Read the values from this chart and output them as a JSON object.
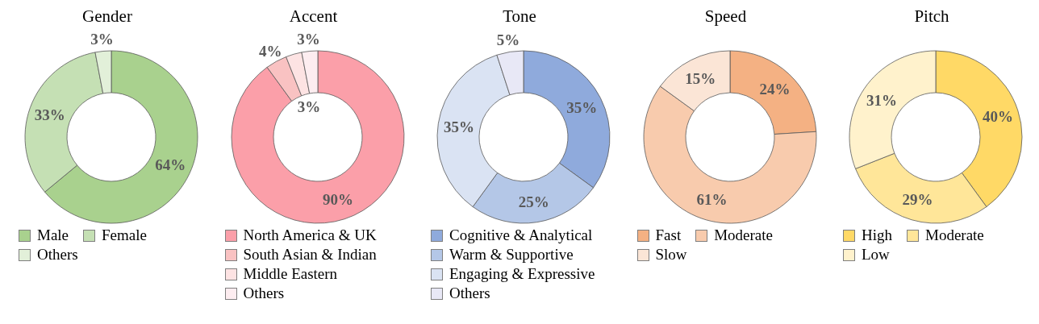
{
  "chart_data": [
    {
      "type": "donut",
      "title": "Gender",
      "categories": [
        "Male",
        "Female",
        "Others"
      ],
      "values": [
        64,
        33,
        3
      ],
      "value_labels": [
        "64%",
        "33%",
        "3%"
      ],
      "colors": [
        "#a9d18e",
        "#c5e0b4",
        "#e2f0d9"
      ],
      "legend": "bottom"
    },
    {
      "type": "donut",
      "title": "Accent",
      "categories": [
        "North America & UK",
        "South Asian & Indian",
        "Middle Eastern",
        "Others"
      ],
      "values": [
        90,
        4,
        3,
        3
      ],
      "value_labels": [
        "90%",
        "4%",
        "3%",
        "3%"
      ],
      "colors": [
        "#fb9fa9",
        "#f9c2c2",
        "#fde3e3",
        "#fdedf0"
      ],
      "legend": "bottom"
    },
    {
      "type": "donut",
      "title": "Tone",
      "categories": [
        "Cognitive & Analytical",
        "Warm & Supportive",
        "Engaging & Expressive",
        "Others"
      ],
      "values": [
        35,
        25,
        35,
        5
      ],
      "value_labels": [
        "35%",
        "25%",
        "35%",
        "5%"
      ],
      "colors": [
        "#8faadc",
        "#b4c7e7",
        "#dae3f3",
        "#e8e8f6"
      ],
      "legend": "bottom"
    },
    {
      "type": "donut",
      "title": "Speed",
      "categories": [
        "Fast",
        "Moderate",
        "Slow"
      ],
      "values": [
        24,
        61,
        15
      ],
      "value_labels": [
        "24%",
        "61%",
        "15%"
      ],
      "colors": [
        "#f4b183",
        "#f8cbad",
        "#fbe5d6"
      ],
      "legend": "bottom"
    },
    {
      "type": "donut",
      "title": "Pitch",
      "categories": [
        "High",
        "Moderate",
        "Low"
      ],
      "values": [
        40,
        29,
        31
      ],
      "value_labels": [
        "40%",
        "29%",
        "31%"
      ],
      "colors": [
        "#ffd966",
        "#ffe699",
        "#fff2cc"
      ],
      "legend": "bottom"
    }
  ]
}
